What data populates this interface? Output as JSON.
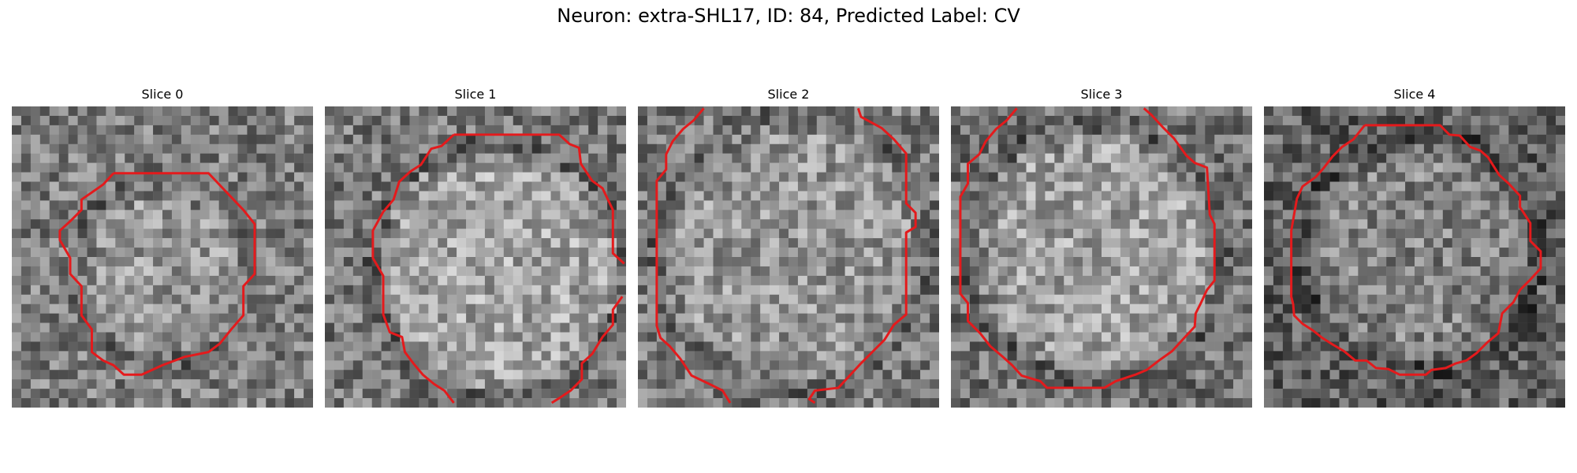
{
  "figure": {
    "title": "Neuron: extra-SHL17, ID: 84, Predicted Label: CV"
  },
  "slices": [
    {
      "title": "Slice 0"
    },
    {
      "title": "Slice 1"
    },
    {
      "title": "Slice 2"
    },
    {
      "title": "Slice 3"
    },
    {
      "title": "Slice 4"
    }
  ],
  "colors": {
    "contour": "#e41a1c",
    "colormap": "gray"
  }
}
